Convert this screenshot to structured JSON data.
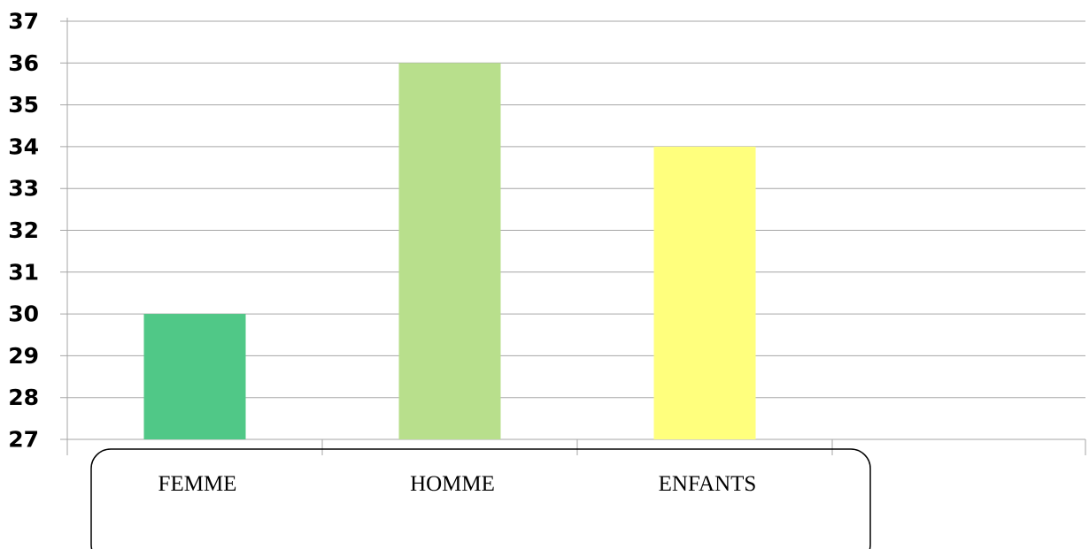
{
  "chart_data": {
    "type": "bar",
    "categories": [
      "FEMME",
      "HOMME",
      "ENFANTS"
    ],
    "values": [
      30,
      36,
      34
    ],
    "colors": [
      "#50c887",
      "#b8df8c",
      "#ffff7d"
    ],
    "yticks": [
      "27",
      "28",
      "29",
      "30",
      "31",
      "32",
      "33",
      "34",
      "35",
      "36",
      "37"
    ],
    "ylim": [
      27,
      37
    ],
    "grid": true,
    "title": "",
    "xlabel": "",
    "ylabel": ""
  }
}
